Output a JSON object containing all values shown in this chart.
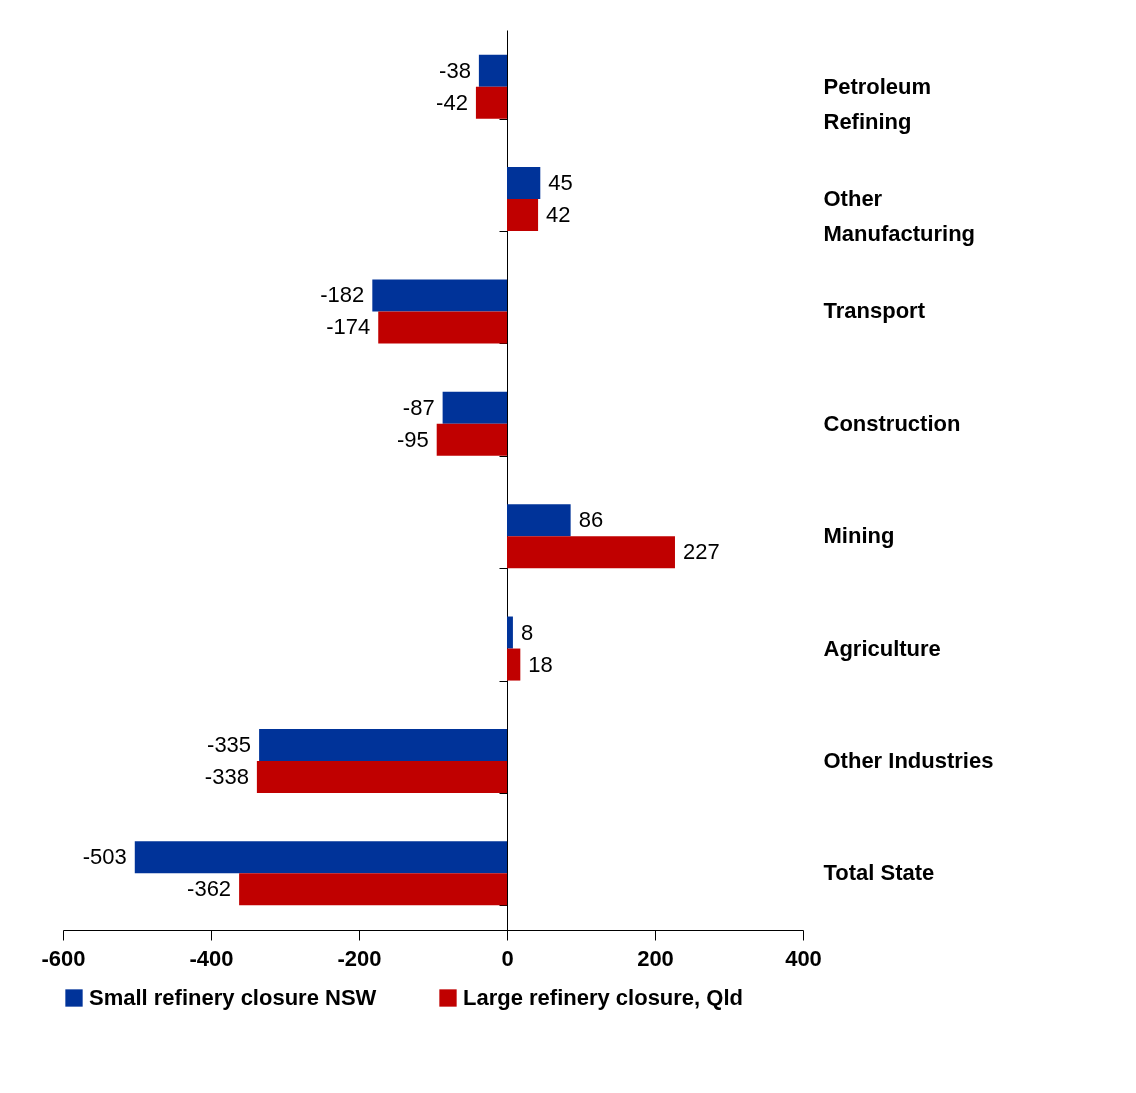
{
  "chart_data": {
    "type": "bar",
    "orientation": "horizontal",
    "categories": [
      "Petroleum Refining",
      "Other Manufacturing",
      "Transport",
      "Construction",
      "Mining",
      "Agriculture",
      "Other Industries",
      "Total State"
    ],
    "series": [
      {
        "name": "Small refinery closure NSW",
        "color": "#003399",
        "values": [
          -38,
          45,
          -182,
          -87,
          86,
          8,
          -335,
          -503
        ]
      },
      {
        "name": "Large refinery closure, Qld",
        "color": "#c00000",
        "values": [
          -42,
          42,
          -174,
          -95,
          227,
          18,
          -338,
          -362
        ]
      }
    ],
    "xlim": [
      -600,
      400
    ],
    "xticks": [
      -600,
      -400,
      -200,
      0,
      200,
      400
    ],
    "data_labels": true,
    "legend": "bottom"
  }
}
